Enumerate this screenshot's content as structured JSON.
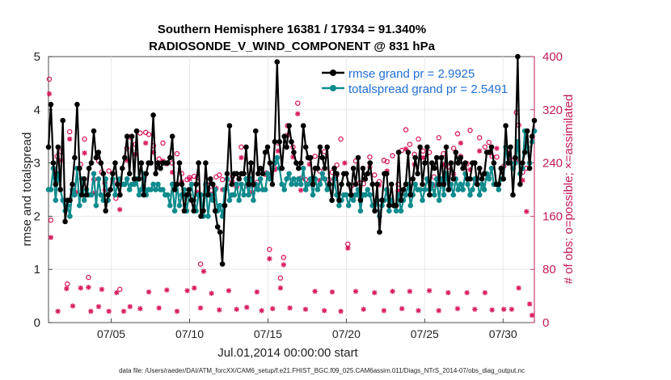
{
  "chart_data": {
    "type": "line",
    "title_line1": "Southern Hemisphere 16381 / 17934 = 91.340%",
    "title_line2": "RADIOSONDE_V_WIND_COMPONENT @ 831 hPa",
    "xlabel": "Jul.01,2014 00:00:00 start",
    "ylabel_left": "rmse and totalspread",
    "ylabel_right": "# of obs: o=possible; ×=assimilated",
    "ylim_left": [
      0,
      5
    ],
    "ylim_right": [
      0,
      400
    ],
    "xlim": [
      1,
      32
    ],
    "x_ticks": [
      5,
      10,
      15,
      20,
      25,
      30
    ],
    "x_tick_labels": [
      "07/05",
      "07/10",
      "07/15",
      "07/20",
      "07/25",
      "07/30"
    ],
    "y_left_ticks": [
      0,
      1,
      2,
      3,
      4,
      5
    ],
    "y_right_ticks": [
      0,
      80,
      160,
      240,
      320,
      400
    ],
    "legend": [
      {
        "name": "rmse grand pr = 2.9925",
        "color": "#000000"
      },
      {
        "name": "totalspread grand pr = 2.5491",
        "color": "#0f8b8d"
      }
    ],
    "footer": "data file: /Users/raeder/DAI/ATM_forcXX/CAM6_setup/f.e21.FHIST_BGC.f09_025.CAM6assim.011/Diags_NTrS_2014-07/obs_diag_output.nc",
    "rmse": [
      3.3,
      4.1,
      3.0,
      2.6,
      3.3,
      2.5,
      3.8,
      1.9,
      2.3,
      2.3,
      2.6,
      3.1,
      4.1,
      2.9,
      2.4,
      2.7,
      2.4,
      2.9,
      3.0,
      3.6,
      3.1,
      3.2,
      3.0,
      2.8,
      2.1,
      2.4,
      2.5,
      2.8,
      3.0,
      2.6,
      2.4,
      2.9,
      3.1,
      3.5,
      2.8,
      3.5,
      2.7,
      3.6,
      2.7,
      3.0,
      2.4,
      2.8,
      3.0,
      3.0,
      3.9,
      2.8,
      3.0,
      2.9,
      3.0,
      3.0,
      3.0,
      3.1,
      3.5,
      2.5,
      2.6,
      3.0,
      2.6,
      2.1,
      2.4,
      2.5,
      2.3,
      2.1,
      2.6,
      3.0,
      2.0,
      2.1,
      3.0,
      2.4,
      2.7,
      2.6,
      2.1,
      1.8,
      1.7,
      1.1,
      2.2,
      2.8,
      3.7,
      2.6,
      2.8,
      2.8,
      2.7,
      2.8,
      2.8,
      3.3,
      2.6,
      3.0,
      2.6,
      3.6,
      2.8,
      2.9,
      2.8,
      3.2,
      3.3,
      3.0,
      2.6,
      3.4,
      4.9,
      3.4,
      2.9,
      3.5,
      3.3,
      3.7,
      3.4,
      3.2,
      3.0,
      2.9,
      3.0,
      3.7,
      3.3,
      3.1,
      3.1,
      2.6,
      2.9,
      2.9,
      3.3,
      3.1,
      2.9,
      3.3,
      2.6,
      2.3,
      2.9,
      2.8,
      2.3,
      2.6,
      2.8,
      2.8,
      2.6,
      2.4,
      2.9,
      2.6,
      3.1,
      2.3,
      2.9,
      2.7,
      2.8,
      3.0,
      2.6,
      2.1,
      2.6,
      1.7,
      2.3,
      2.8,
      2.8,
      2.2,
      2.6,
      2.2,
      2.2,
      3.2,
      2.3,
      2.5,
      2.6,
      3.2,
      2.4,
      2.7,
      3.1,
      2.8,
      3.3,
      2.6,
      3.0,
      3.3,
      2.4,
      3.0,
      2.9,
      3.1,
      2.6,
      3.1,
      2.6,
      3.3,
      2.5,
      3.0,
      2.7,
      3.2,
      3.0,
      3.1,
      2.9,
      3.0,
      2.7,
      2.7,
      3.0,
      3.0,
      2.6,
      2.9,
      2.7,
      2.8,
      3.2,
      3.2,
      3.3,
      3.0,
      2.6,
      2.6,
      2.9,
      2.7,
      3.7,
      3.0,
      3.3,
      2.4,
      3.1,
      5.0,
      2.6,
      3.0,
      3.2,
      3.6,
      2.9,
      3.5,
      3.8
    ],
    "totalspread": [
      2.5,
      2.5,
      2.9,
      2.3,
      2.8,
      2.5,
      2.3,
      2.1,
      2.2,
      2.0,
      2.5,
      2.4,
      2.9,
      2.2,
      2.7,
      2.3,
      2.5,
      2.4,
      2.4,
      2.8,
      2.2,
      2.7,
      2.4,
      2.3,
      2.7,
      2.3,
      2.5,
      2.7,
      2.4,
      2.6,
      2.7,
      2.6,
      2.6,
      2.7,
      2.5,
      2.6,
      2.6,
      2.7,
      2.4,
      2.5,
      2.8,
      2.4,
      2.5,
      2.5,
      2.6,
      2.5,
      2.6,
      2.5,
      2.5,
      2.4,
      2.4,
      2.2,
      2.6,
      2.1,
      2.6,
      2.2,
      2.4,
      2.5,
      2.1,
      2.4,
      2.6,
      2.3,
      2.1,
      2.4,
      2.4,
      2.0,
      2.6,
      2.0,
      2.4,
      2.3,
      2.5,
      2.1,
      2.2,
      2.0,
      2.5,
      2.7,
      2.3,
      2.4,
      2.4,
      2.6,
      2.3,
      2.6,
      2.4,
      2.7,
      2.4,
      2.7,
      2.3,
      2.6,
      2.5,
      2.7,
      2.5,
      2.5,
      2.8,
      2.7,
      2.9,
      3.0,
      3.1,
      2.9,
      2.6,
      2.5,
      2.7,
      2.8,
      2.6,
      2.7,
      2.6,
      2.7,
      2.6,
      2.9,
      2.5,
      2.6,
      2.7,
      2.4,
      2.7,
      2.5,
      2.6,
      2.8,
      2.7,
      2.5,
      2.6,
      2.3,
      2.7,
      2.4,
      2.2,
      2.3,
      2.4,
      2.4,
      2.2,
      2.4,
      2.3,
      2.4,
      2.5,
      2.1,
      2.4,
      2.4,
      2.5,
      2.4,
      2.2,
      2.1,
      2.3,
      2.0,
      2.2,
      2.3,
      2.5,
      2.1,
      2.3,
      2.2,
      2.1,
      2.4,
      2.1,
      2.3,
      2.4,
      2.6,
      2.2,
      2.4,
      2.6,
      2.5,
      2.5,
      2.3,
      2.5,
      2.7,
      2.5,
      2.6,
      2.4,
      2.7,
      2.3,
      2.7,
      2.4,
      2.8,
      2.5,
      2.6,
      2.4,
      2.7,
      2.5,
      2.6,
      2.5,
      2.8,
      2.6,
      2.4,
      2.5,
      2.7,
      2.7,
      2.4,
      2.6,
      2.5,
      2.8,
      2.7,
      2.9,
      2.6,
      2.6,
      2.5,
      2.7,
      2.7,
      3.3,
      3.0,
      3.0,
      2.9,
      3.0,
      3.4,
      2.8,
      2.9,
      3.6,
      3.3,
      3.0,
      3.4,
      3.6
    ],
    "obs_possible": [
      {
        "x": 1.05,
        "v": 366
      },
      {
        "x": 1.15,
        "v": 154
      },
      {
        "x": 1.55,
        "v": 250
      },
      {
        "x": 1.8,
        "v": 257
      },
      {
        "x": 2.2,
        "v": 58
      },
      {
        "x": 2.35,
        "v": 287
      },
      {
        "x": 2.6,
        "v": 202
      },
      {
        "x": 3.05,
        "v": 238
      },
      {
        "x": 3.3,
        "v": 276
      },
      {
        "x": 3.55,
        "v": 68
      },
      {
        "x": 3.9,
        "v": 215
      },
      {
        "x": 4.2,
        "v": 243
      },
      {
        "x": 4.4,
        "v": 226
      },
      {
        "x": 4.6,
        "v": 210
      },
      {
        "x": 4.85,
        "v": 228
      },
      {
        "x": 5.3,
        "v": 187
      },
      {
        "x": 5.55,
        "v": 50
      },
      {
        "x": 6.0,
        "v": 262
      },
      {
        "x": 6.2,
        "v": 279
      },
      {
        "x": 6.55,
        "v": 268
      },
      {
        "x": 6.85,
        "v": 285
      },
      {
        "x": 7.2,
        "v": 286
      },
      {
        "x": 7.4,
        "v": 283
      },
      {
        "x": 7.7,
        "v": 266
      },
      {
        "x": 8.05,
        "v": 246
      },
      {
        "x": 8.3,
        "v": 270
      },
      {
        "x": 8.55,
        "v": 239
      },
      {
        "x": 8.9,
        "v": 240
      },
      {
        "x": 9.2,
        "v": 254
      },
      {
        "x": 9.5,
        "v": 224
      },
      {
        "x": 9.85,
        "v": 215
      },
      {
        "x": 10.0,
        "v": 218
      },
      {
        "x": 10.3,
        "v": 220
      },
      {
        "x": 10.5,
        "v": 218
      },
      {
        "x": 10.7,
        "v": 88
      },
      {
        "x": 11.15,
        "v": 207
      },
      {
        "x": 11.4,
        "v": 199
      },
      {
        "x": 11.7,
        "v": 219
      },
      {
        "x": 11.9,
        "v": 222
      },
      {
        "x": 12.1,
        "v": 215
      },
      {
        "x": 12.5,
        "v": 210
      },
      {
        "x": 12.75,
        "v": 220
      },
      {
        "x": 13.0,
        "v": 204
      },
      {
        "x": 13.3,
        "v": 264
      },
      {
        "x": 13.65,
        "v": 206
      },
      {
        "x": 14.0,
        "v": 206
      },
      {
        "x": 14.3,
        "v": 211
      },
      {
        "x": 14.9,
        "v": 225
      },
      {
        "x": 15.1,
        "v": 110
      },
      {
        "x": 15.4,
        "v": 233
      },
      {
        "x": 15.65,
        "v": 270
      },
      {
        "x": 15.8,
        "v": 67
      },
      {
        "x": 16.0,
        "v": 98
      },
      {
        "x": 16.25,
        "v": 296
      },
      {
        "x": 16.6,
        "v": 264
      },
      {
        "x": 16.9,
        "v": 330
      },
      {
        "x": 17.1,
        "v": 217
      },
      {
        "x": 17.4,
        "v": 215
      },
      {
        "x": 17.65,
        "v": 247
      },
      {
        "x": 18.0,
        "v": 250
      },
      {
        "x": 18.3,
        "v": 228
      },
      {
        "x": 18.6,
        "v": 257
      },
      {
        "x": 18.9,
        "v": 215
      },
      {
        "x": 19.1,
        "v": 226
      },
      {
        "x": 19.4,
        "v": 237
      },
      {
        "x": 19.65,
        "v": 276
      },
      {
        "x": 20.1,
        "v": 118
      },
      {
        "x": 20.35,
        "v": 206
      },
      {
        "x": 20.6,
        "v": 243
      },
      {
        "x": 20.85,
        "v": 210
      },
      {
        "x": 21.1,
        "v": 209
      },
      {
        "x": 21.5,
        "v": 249
      },
      {
        "x": 21.8,
        "v": 222
      },
      {
        "x": 22.1,
        "v": 212
      },
      {
        "x": 22.4,
        "v": 244
      },
      {
        "x": 22.6,
        "v": 242
      },
      {
        "x": 22.95,
        "v": 251
      },
      {
        "x": 23.3,
        "v": 208
      },
      {
        "x": 23.55,
        "v": 259
      },
      {
        "x": 23.8,
        "v": 290
      },
      {
        "x": 24.05,
        "v": 268
      },
      {
        "x": 24.35,
        "v": 253
      },
      {
        "x": 24.6,
        "v": 276
      },
      {
        "x": 24.9,
        "v": 258
      },
      {
        "x": 25.3,
        "v": 256
      },
      {
        "x": 25.6,
        "v": 219
      },
      {
        "x": 25.9,
        "v": 278
      },
      {
        "x": 26.2,
        "v": 254
      },
      {
        "x": 26.5,
        "v": 234
      },
      {
        "x": 26.85,
        "v": 262
      },
      {
        "x": 27.1,
        "v": 284
      },
      {
        "x": 27.3,
        "v": 250
      },
      {
        "x": 27.7,
        "v": 239
      },
      {
        "x": 27.9,
        "v": 289
      },
      {
        "x": 28.2,
        "v": 215
      },
      {
        "x": 28.5,
        "v": 278
      },
      {
        "x": 28.85,
        "v": 264
      },
      {
        "x": 29.1,
        "v": 271
      },
      {
        "x": 29.3,
        "v": 250
      },
      {
        "x": 29.6,
        "v": 249
      },
      {
        "x": 30.05,
        "v": 235
      },
      {
        "x": 30.3,
        "v": 260
      },
      {
        "x": 30.55,
        "v": 244
      },
      {
        "x": 30.85,
        "v": 316
      },
      {
        "x": 31.0,
        "v": 297
      },
      {
        "x": 31.25,
        "v": 226
      },
      {
        "x": 31.5,
        "v": 232
      }
    ],
    "obs_assimilated": [
      {
        "x": 1.05,
        "v": 344
      },
      {
        "x": 1.15,
        "v": 128
      },
      {
        "x": 1.45,
        "v": 226
      },
      {
        "x": 1.6,
        "v": 17
      },
      {
        "x": 1.8,
        "v": 244
      },
      {
        "x": 2.15,
        "v": 51
      },
      {
        "x": 2.35,
        "v": 276
      },
      {
        "x": 2.55,
        "v": 25
      },
      {
        "x": 2.8,
        "v": 196
      },
      {
        "x": 3.05,
        "v": 52
      },
      {
        "x": 3.3,
        "v": 255
      },
      {
        "x": 3.55,
        "v": 53
      },
      {
        "x": 3.7,
        "v": 17
      },
      {
        "x": 3.95,
        "v": 195
      },
      {
        "x": 4.2,
        "v": 24
      },
      {
        "x": 4.4,
        "v": 50
      },
      {
        "x": 4.6,
        "v": 199
      },
      {
        "x": 4.85,
        "v": 17
      },
      {
        "x": 5.1,
        "v": 212
      },
      {
        "x": 5.35,
        "v": 45
      },
      {
        "x": 5.55,
        "v": 170
      },
      {
        "x": 5.8,
        "v": 17
      },
      {
        "x": 6.0,
        "v": 244
      },
      {
        "x": 6.2,
        "v": 24
      },
      {
        "x": 6.55,
        "v": 253
      },
      {
        "x": 6.85,
        "v": 21
      },
      {
        "x": 7.2,
        "v": 270
      },
      {
        "x": 7.4,
        "v": 46
      },
      {
        "x": 7.7,
        "v": 256
      },
      {
        "x": 8.05,
        "v": 22
      },
      {
        "x": 8.3,
        "v": 243
      },
      {
        "x": 8.55,
        "v": 49
      },
      {
        "x": 8.9,
        "v": 226
      },
      {
        "x": 9.2,
        "v": 17
      },
      {
        "x": 9.5,
        "v": 212
      },
      {
        "x": 9.85,
        "v": 48
      },
      {
        "x": 10.0,
        "v": 216
      },
      {
        "x": 10.3,
        "v": 52
      },
      {
        "x": 10.5,
        "v": 196
      },
      {
        "x": 10.7,
        "v": 22
      },
      {
        "x": 10.9,
        "v": 77
      },
      {
        "x": 11.15,
        "v": 199
      },
      {
        "x": 11.4,
        "v": 44
      },
      {
        "x": 11.7,
        "v": 202
      },
      {
        "x": 11.9,
        "v": 19
      },
      {
        "x": 12.1,
        "v": 200
      },
      {
        "x": 12.5,
        "v": 48
      },
      {
        "x": 12.75,
        "v": 211
      },
      {
        "x": 13.0,
        "v": 20
      },
      {
        "x": 13.3,
        "v": 248
      },
      {
        "x": 13.65,
        "v": 23
      },
      {
        "x": 14.0,
        "v": 196
      },
      {
        "x": 14.3,
        "v": 46
      },
      {
        "x": 14.6,
        "v": 18
      },
      {
        "x": 14.9,
        "v": 222
      },
      {
        "x": 15.1,
        "v": 96
      },
      {
        "x": 15.3,
        "v": 21
      },
      {
        "x": 15.45,
        "v": 230
      },
      {
        "x": 15.65,
        "v": 258
      },
      {
        "x": 15.8,
        "v": 52
      },
      {
        "x": 16.0,
        "v": 87
      },
      {
        "x": 16.25,
        "v": 282
      },
      {
        "x": 16.4,
        "v": 22
      },
      {
        "x": 16.6,
        "v": 249
      },
      {
        "x": 16.9,
        "v": 314
      },
      {
        "x": 17.1,
        "v": 199
      },
      {
        "x": 17.4,
        "v": 20
      },
      {
        "x": 17.65,
        "v": 238
      },
      {
        "x": 18.0,
        "v": 47
      },
      {
        "x": 18.3,
        "v": 214
      },
      {
        "x": 18.6,
        "v": 18
      },
      {
        "x": 18.9,
        "v": 208
      },
      {
        "x": 19.1,
        "v": 46
      },
      {
        "x": 19.4,
        "v": 222
      },
      {
        "x": 19.65,
        "v": 17
      },
      {
        "x": 19.9,
        "v": 240
      },
      {
        "x": 20.1,
        "v": 112
      },
      {
        "x": 20.35,
        "v": 192
      },
      {
        "x": 20.6,
        "v": 47
      },
      {
        "x": 20.85,
        "v": 191
      },
      {
        "x": 21.1,
        "v": 20
      },
      {
        "x": 21.5,
        "v": 234
      },
      {
        "x": 21.8,
        "v": 45
      },
      {
        "x": 22.1,
        "v": 207
      },
      {
        "x": 22.4,
        "v": 18
      },
      {
        "x": 22.6,
        "v": 228
      },
      {
        "x": 22.95,
        "v": 47
      },
      {
        "x": 23.3,
        "v": 198
      },
      {
        "x": 23.55,
        "v": 21
      },
      {
        "x": 23.8,
        "v": 261
      },
      {
        "x": 24.05,
        "v": 47
      },
      {
        "x": 24.35,
        "v": 238
      },
      {
        "x": 24.6,
        "v": 18
      },
      {
        "x": 24.9,
        "v": 248
      },
      {
        "x": 25.3,
        "v": 48
      },
      {
        "x": 25.6,
        "v": 207
      },
      {
        "x": 25.9,
        "v": 18
      },
      {
        "x": 26.2,
        "v": 238
      },
      {
        "x": 26.5,
        "v": 45
      },
      {
        "x": 26.85,
        "v": 223
      },
      {
        "x": 27.1,
        "v": 21
      },
      {
        "x": 27.3,
        "v": 270
      },
      {
        "x": 27.7,
        "v": 45
      },
      {
        "x": 27.9,
        "v": 230
      },
      {
        "x": 28.2,
        "v": 20
      },
      {
        "x": 28.5,
        "v": 258
      },
      {
        "x": 28.85,
        "v": 45
      },
      {
        "x": 29.1,
        "v": 218
      },
      {
        "x": 29.3,
        "v": 19
      },
      {
        "x": 29.6,
        "v": 262
      },
      {
        "x": 30.05,
        "v": 20
      },
      {
        "x": 30.3,
        "v": 255
      },
      {
        "x": 30.55,
        "v": 20
      },
      {
        "x": 30.85,
        "v": 244
      },
      {
        "x": 31.0,
        "v": 52
      },
      {
        "x": 31.25,
        "v": 214
      },
      {
        "x": 31.5,
        "v": 167
      },
      {
        "x": 31.7,
        "v": 28
      },
      {
        "x": 31.85,
        "v": 11
      }
    ]
  }
}
